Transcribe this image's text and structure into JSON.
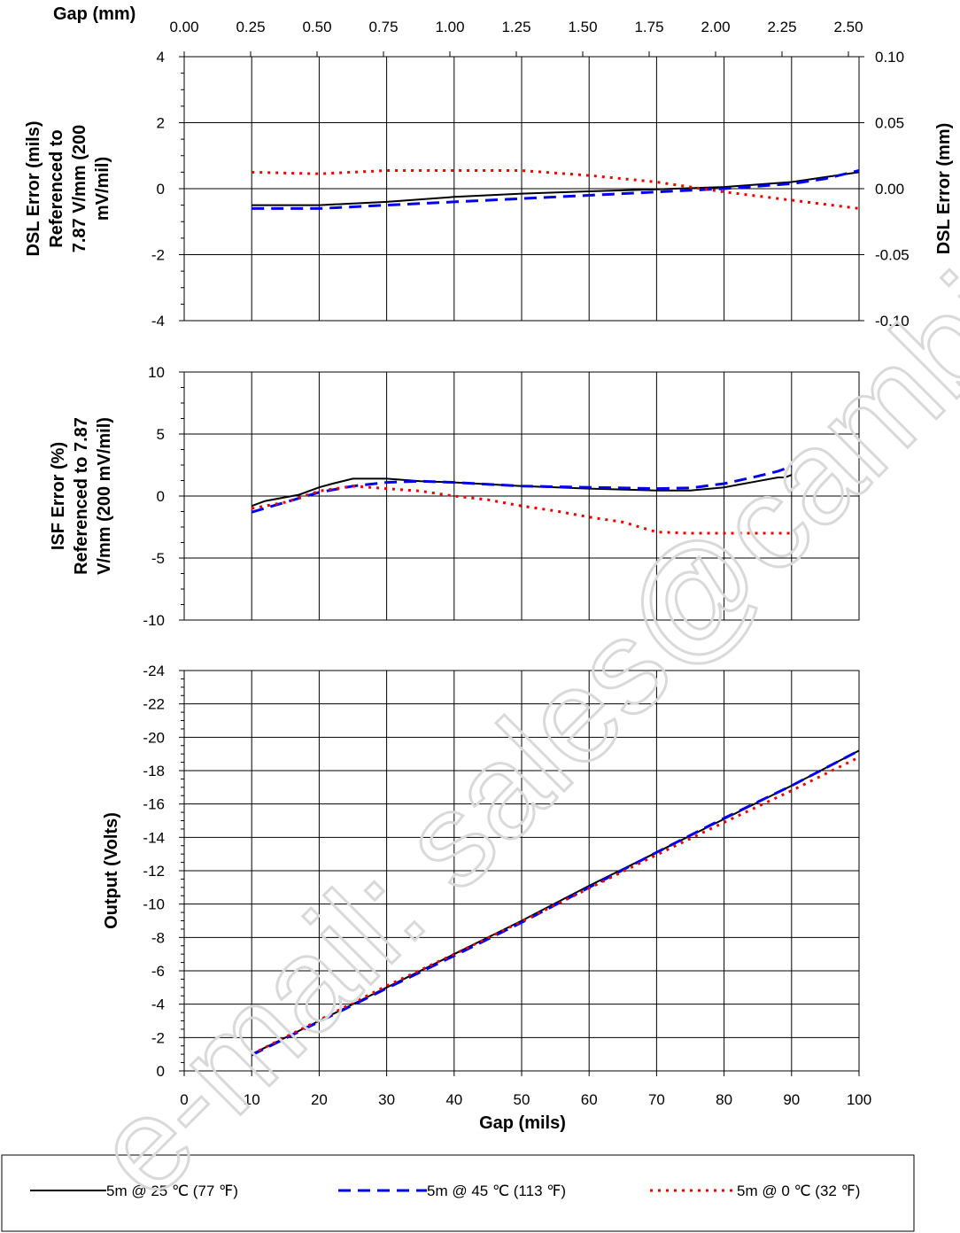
{
  "chart_data": [
    {
      "type": "line",
      "panel": "dsl-error",
      "ylabel_lines": [
        "DSL Error (mils)",
        "Referenced to",
        "7.87 V/mm (200",
        "mV/mil)"
      ],
      "y2label": "DSL Error (mm)",
      "top_axis_label": "Gap (mm)",
      "top_ticks": [
        "0.00",
        "0.25",
        "0.50",
        "0.75",
        "1.00",
        "1.25",
        "1.50",
        "1.75",
        "2.00",
        "2.25",
        "2.50"
      ],
      "ylim": [
        -4,
        4
      ],
      "yticks": [
        "4",
        "2",
        "0",
        "-2",
        "-4"
      ],
      "y2ticks": [
        "0.10",
        "0.05",
        "0.00",
        "-0.05",
        "-0.10"
      ],
      "xlim": [
        0,
        100
      ],
      "series": [
        {
          "name": "5m @ 25 ℃ (77 ℉)",
          "color": "#000000",
          "dash": "solid",
          "x": [
            10,
            20,
            30,
            40,
            50,
            60,
            70,
            80,
            90,
            100
          ],
          "y": [
            -0.5,
            -0.5,
            -0.4,
            -0.25,
            -0.15,
            -0.08,
            -0.02,
            0.05,
            0.2,
            0.5
          ]
        },
        {
          "name": "5m @ 45 ℃ (113 ℉)",
          "color": "#0000ee",
          "dash": "dash",
          "x": [
            10,
            20,
            30,
            40,
            50,
            60,
            70,
            80,
            90,
            95,
            100
          ],
          "y": [
            -0.6,
            -0.6,
            -0.5,
            -0.4,
            -0.3,
            -0.2,
            -0.1,
            0.0,
            0.15,
            0.3,
            0.55
          ]
        },
        {
          "name": "5m @ 0 ℃ (32 ℉)",
          "color": "#ee0000",
          "dash": "dot",
          "x": [
            10,
            20,
            30,
            40,
            50,
            60,
            70,
            80,
            90,
            100
          ],
          "y": [
            0.5,
            0.45,
            0.55,
            0.55,
            0.55,
            0.4,
            0.2,
            -0.1,
            -0.35,
            -0.6
          ]
        }
      ]
    },
    {
      "type": "line",
      "panel": "isf-error",
      "ylabel_lines": [
        "ISF Error (%)",
        "Referenced to 7.87",
        "V/mm (200 mV/mil)"
      ],
      "ylim": [
        -10,
        10
      ],
      "yticks": [
        "10",
        "5",
        "0",
        "-5",
        "-10"
      ],
      "xlim": [
        0,
        100
      ],
      "series": [
        {
          "name": "5m @ 25 ℃ (77 ℉)",
          "color": "#000000",
          "dash": "solid",
          "x": [
            10,
            12,
            15,
            17,
            20,
            22,
            25,
            28,
            30,
            35,
            40,
            50,
            60,
            70,
            75,
            80,
            82,
            85,
            88,
            89,
            90
          ],
          "y": [
            -0.8,
            -0.4,
            -0.1,
            0.1,
            0.7,
            1.0,
            1.4,
            1.4,
            1.4,
            1.2,
            1.1,
            0.8,
            0.6,
            0.45,
            0.45,
            0.7,
            0.9,
            1.2,
            1.5,
            1.5,
            1.7
          ]
        },
        {
          "name": "5m @ 45 ℃ (113 ℉)",
          "color": "#0000ee",
          "dash": "dash",
          "x": [
            10,
            15,
            20,
            25,
            30,
            35,
            40,
            50,
            60,
            70,
            75,
            80,
            85,
            88,
            90
          ],
          "y": [
            -1.3,
            -0.5,
            0.3,
            0.8,
            1.1,
            1.2,
            1.1,
            0.8,
            0.7,
            0.6,
            0.65,
            1.0,
            1.6,
            2.0,
            2.4
          ]
        },
        {
          "name": "5m @ 0 ℃ (32 ℉)",
          "color": "#ee0000",
          "dash": "dot",
          "x": [
            10,
            15,
            20,
            25,
            30,
            35,
            40,
            45,
            50,
            55,
            60,
            65,
            70,
            75,
            80,
            85,
            90
          ],
          "y": [
            -1.0,
            -0.5,
            0.4,
            0.8,
            0.6,
            0.4,
            0.0,
            -0.3,
            -0.8,
            -1.2,
            -1.7,
            -2.1,
            -2.9,
            -3.0,
            -3.0,
            -3.0,
            -3.0
          ]
        }
      ]
    },
    {
      "type": "line",
      "panel": "output",
      "ylabel": "Output (Volts)",
      "xlabel": "Gap (mils)",
      "ylim": [
        0,
        -24
      ],
      "yticks": [
        "-24",
        "-22",
        "-20",
        "-18",
        "-16",
        "-14",
        "-12",
        "-10",
        "-8",
        "-6",
        "-4",
        "-2",
        "0"
      ],
      "xticks": [
        "0",
        "10",
        "20",
        "30",
        "40",
        "50",
        "60",
        "70",
        "80",
        "90",
        "100"
      ],
      "xlim": [
        0,
        100
      ],
      "series": [
        {
          "name": "5m @ 25 ℃ (77 ℉)",
          "color": "#000000",
          "dash": "solid",
          "x": [
            10,
            20,
            30,
            40,
            50,
            60,
            70,
            80,
            90,
            100
          ],
          "y": [
            -1.0,
            -3.0,
            -5.0,
            -7.0,
            -9.0,
            -11.1,
            -13.1,
            -15.1,
            -17.1,
            -19.2
          ]
        },
        {
          "name": "5m @ 45 ℃ (113 ℉)",
          "color": "#0000ee",
          "dash": "dash",
          "x": [
            10,
            20,
            30,
            40,
            50,
            60,
            70,
            80,
            90,
            100
          ],
          "y": [
            -0.95,
            -2.95,
            -4.95,
            -6.9,
            -8.9,
            -11.0,
            -13.1,
            -15.15,
            -17.1,
            -19.2
          ]
        },
        {
          "name": "5m @ 0 ℃ (32 ℉)",
          "color": "#ee0000",
          "dash": "dot",
          "x": [
            10,
            20,
            30,
            40,
            50,
            60,
            70,
            80,
            90,
            100
          ],
          "y": [
            -1.0,
            -3.05,
            -5.1,
            -7.0,
            -8.95,
            -10.95,
            -12.95,
            -14.9,
            -16.8,
            -18.8
          ]
        }
      ]
    }
  ],
  "legend": {
    "position": "bottom",
    "entries": [
      {
        "label": "5m @ 25 ℃ (77 ℉)",
        "color": "#000000",
        "dash": "solid"
      },
      {
        "label": "5m @ 45 ℃ (113 ℉)",
        "color": "#0000ee",
        "dash": "dash"
      },
      {
        "label": "5m @ 0 ℃ (32 ℉)",
        "color": "#ee0000",
        "dash": "dot"
      }
    ]
  },
  "watermark": "e-mail: sales@cambia."
}
